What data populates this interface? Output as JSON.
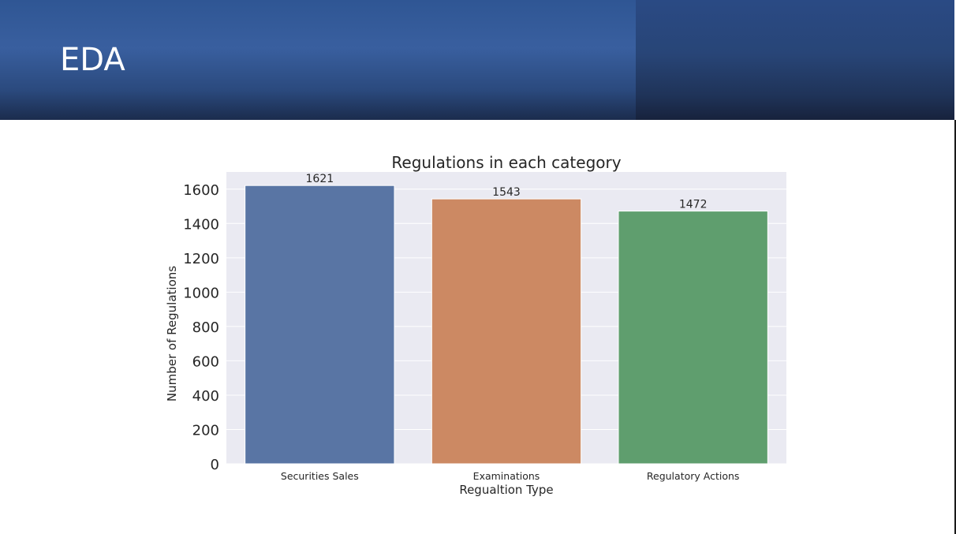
{
  "slide": {
    "title": "EDA"
  },
  "chart_data": {
    "type": "bar",
    "title": "Regulations in each category",
    "xlabel": "Regualtion Type",
    "ylabel": "Number of Regulations",
    "categories": [
      "Securities Sales",
      "Examinations",
      "Regulatory Actions"
    ],
    "values": [
      1621,
      1543,
      1472
    ],
    "data_labels": [
      "1621",
      "1543",
      "1472"
    ],
    "ylim": [
      0,
      1700
    ],
    "yticks": [
      0,
      200,
      400,
      600,
      800,
      1000,
      1200,
      1400,
      1600
    ],
    "grid": true,
    "legend": "none",
    "colors": [
      "#5975a4",
      "#cc8963",
      "#5f9e6e"
    ],
    "plot_background": "#eaeaf2"
  }
}
